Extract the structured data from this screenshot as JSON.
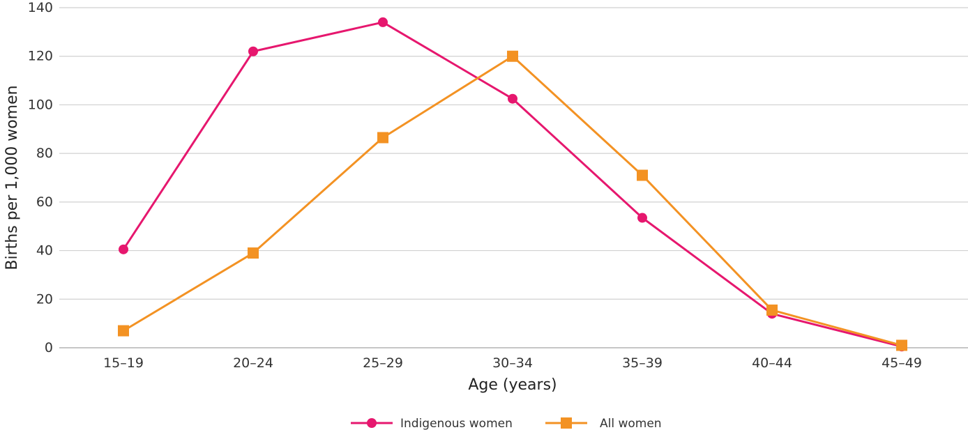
{
  "chart_data": {
    "type": "line",
    "title": "",
    "xlabel": "Age (years)",
    "ylabel": "Births per 1,000 women",
    "categories": [
      "15–19",
      "20–24",
      "25–29",
      "30–34",
      "35–39",
      "40–44",
      "45–49"
    ],
    "ylim": [
      0,
      140
    ],
    "yticks": [
      0,
      20,
      40,
      60,
      80,
      100,
      120,
      140
    ],
    "grid": true,
    "legend_position": "bottom",
    "series": [
      {
        "name": "Indigenous women",
        "values": [
          40.5,
          122,
          134,
          102.5,
          53.5,
          14,
          0.5
        ],
        "color": "#E6176E",
        "marker": "circle"
      },
      {
        "name": "All women",
        "values": [
          7,
          39,
          86.5,
          120,
          71,
          15.5,
          1
        ],
        "color": "#F39223",
        "marker": "square"
      }
    ]
  }
}
